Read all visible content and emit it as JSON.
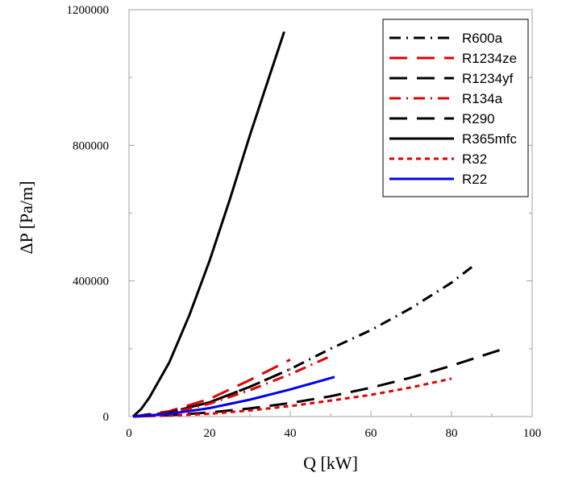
{
  "chart_data": {
    "type": "line",
    "xlabel": "Q [kW]",
    "ylabel": "ΔP [Pa/m]",
    "xlim": [
      0,
      100
    ],
    "ylim": [
      0,
      1200000
    ],
    "x_ticks": [
      "0",
      "20",
      "40",
      "60",
      "80",
      "100"
    ],
    "y_ticks": [
      "0",
      "400000",
      "800000",
      "1200000"
    ],
    "grid": false,
    "legend_position": "top-right",
    "series": [
      {
        "name": "R600a",
        "color": "#000000",
        "dash": "14 7 2 7",
        "x": [
          1,
          10,
          20,
          30,
          40,
          50,
          60,
          70,
          80,
          86
        ],
        "y": [
          0,
          12000,
          42000,
          88000,
          140000,
          200000,
          255000,
          320000,
          395000,
          450000
        ]
      },
      {
        "name": "R1234ze",
        "color": "#e00000",
        "dash": "22 12",
        "x": [
          1,
          10,
          20,
          30,
          40
        ],
        "y": [
          0,
          16000,
          52000,
          108000,
          168000
        ]
      },
      {
        "name": "R1234yf",
        "color": "#000000",
        "dash": "22 12",
        "x": [
          1,
          10,
          20,
          30,
          40
        ],
        "y": [
          0,
          12000,
          42000,
          88000,
          140000
        ]
      },
      {
        "name": "R134a",
        "color": "#e00000",
        "dash": "14 7 2 7",
        "x": [
          1,
          10,
          20,
          30,
          40,
          50
        ],
        "y": [
          0,
          10000,
          38000,
          78000,
          125000,
          178000
        ]
      },
      {
        "name": "R290",
        "color": "#000000",
        "dash": "22 12",
        "x": [
          1,
          10,
          20,
          30,
          40,
          50,
          60,
          70,
          80,
          93
        ],
        "y": [
          0,
          4000,
          12000,
          24000,
          40000,
          60000,
          85000,
          115000,
          150000,
          200000
        ]
      },
      {
        "name": "R365mfc",
        "color": "#000000",
        "dash": "",
        "x": [
          1,
          3,
          5,
          10,
          15,
          20,
          25,
          30,
          35,
          38.5
        ],
        "y": [
          0,
          22000,
          55000,
          160000,
          300000,
          460000,
          640000,
          830000,
          1010000,
          1135000
        ]
      },
      {
        "name": "R32",
        "color": "#e00000",
        "dash": "6 5",
        "x": [
          1,
          10,
          20,
          30,
          40,
          50,
          60,
          70,
          80
        ],
        "y": [
          0,
          3000,
          8000,
          18000,
          31000,
          47000,
          64000,
          86000,
          112000
        ]
      },
      {
        "name": "R22",
        "color": "#0000ee",
        "dash": "",
        "x": [
          1,
          10,
          20,
          30,
          40,
          51
        ],
        "y": [
          0,
          8000,
          25000,
          50000,
          80000,
          117000
        ]
      }
    ]
  }
}
